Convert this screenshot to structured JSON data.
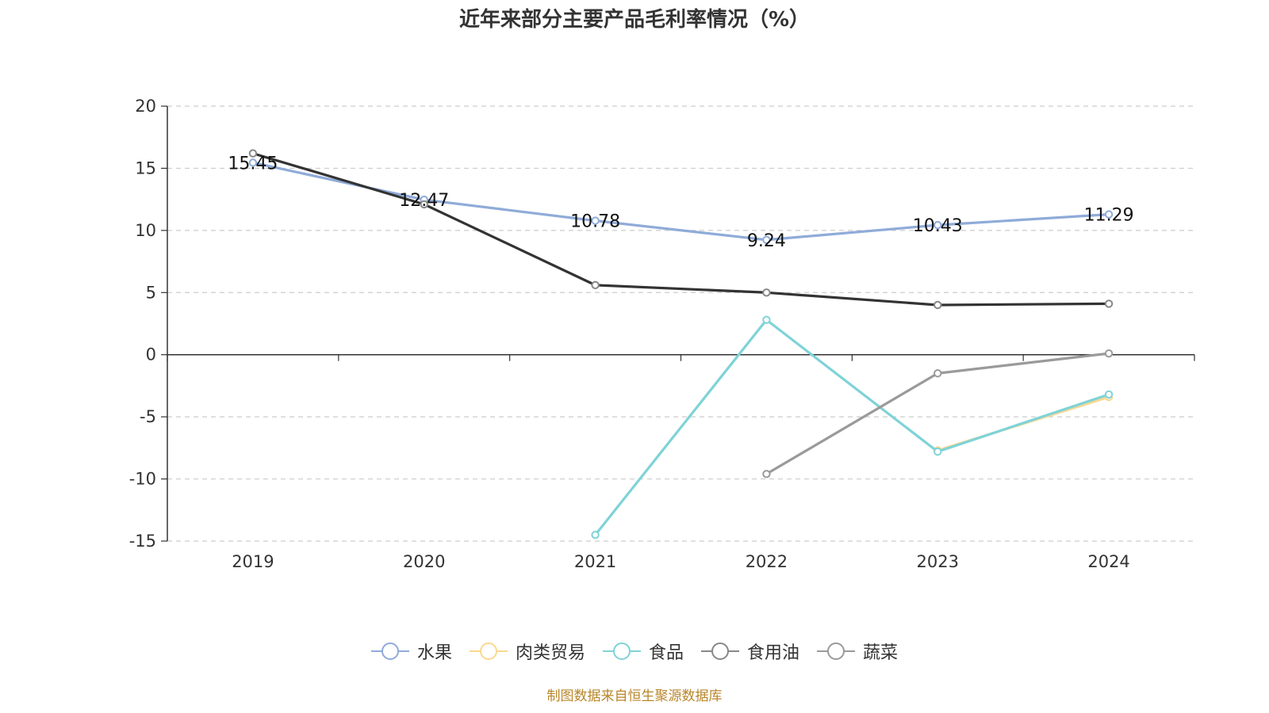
{
  "title": "近年来部分主要产品毛利率情况（%）",
  "source": "制图数据来自恒生聚源数据库",
  "chart_data": {
    "type": "line",
    "categories": [
      "2019",
      "2020",
      "2021",
      "2022",
      "2023",
      "2024"
    ],
    "ylim": [
      -15,
      20
    ],
    "yticks": [
      20,
      15,
      10,
      5,
      0,
      -5,
      -10,
      -15
    ],
    "grid": true,
    "legend_position": "bottom",
    "series": [
      {
        "name": "水果",
        "color": "#8fabd8",
        "values": [
          15.45,
          12.47,
          10.78,
          9.24,
          10.43,
          11.29
        ],
        "show_labels": true
      },
      {
        "name": "肉类贸易",
        "color": "#fad890",
        "values": [
          null,
          null,
          null,
          null,
          -7.7,
          -3.4
        ],
        "show_labels": false
      },
      {
        "name": "食品",
        "color": "#7fd3d7",
        "values": [
          null,
          null,
          -14.5,
          2.8,
          -7.8,
          -3.2
        ],
        "show_labels": false
      },
      {
        "name": "食用油",
        "color": "#333333",
        "values": [
          16.2,
          12.1,
          5.6,
          5.0,
          4.0,
          4.1
        ],
        "show_labels": false
      },
      {
        "name": "蔬菜",
        "color": "#9a9a9a",
        "values": [
          null,
          null,
          null,
          -9.6,
          -1.5,
          0.1
        ],
        "show_labels": false
      }
    ]
  }
}
